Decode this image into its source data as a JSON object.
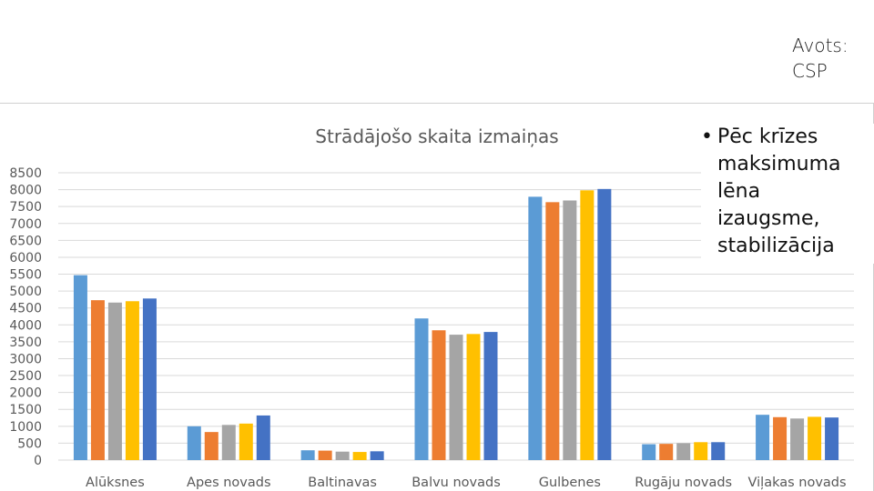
{
  "source": {
    "line1": "Avots:",
    "line2": "CSP"
  },
  "bullet": {
    "symbol": "•",
    "lines": [
      "Pēc krīzes",
      "maksimuma",
      "lēna",
      "izaugsme,",
      "stabilizācija"
    ]
  },
  "colors": {
    "series": [
      "#5B9BD5",
      "#ED7D31",
      "#A5A5A5",
      "#FFC000",
      "#4472C4"
    ],
    "grid": "#d9d9d9",
    "text": "#595959"
  },
  "chart_data": {
    "type": "bar",
    "title": "Strādājošo skaita izmaiņas",
    "xlabel": "",
    "ylabel": "",
    "ylim": [
      0,
      8500
    ],
    "yticks": [
      "0",
      "500",
      "1000",
      "1500",
      "2000",
      "2500",
      "3000",
      "3500",
      "4000",
      "4500",
      "5000",
      "5500",
      "6000",
      "6500",
      "7000",
      "7500",
      "8000",
      "8500"
    ],
    "grid": true,
    "categories": [
      "Alūksnes",
      "Apes novads",
      "Baltinavas",
      "Balvu novads",
      "Gulbenes",
      "Rugāju novads",
      "Viļakas novads"
    ],
    "series": [
      {
        "values": [
          5470,
          1000,
          290,
          4190,
          7790,
          470,
          1340
        ]
      },
      {
        "values": [
          4730,
          830,
          280,
          3840,
          7630,
          480,
          1270
        ]
      },
      {
        "values": [
          4660,
          1040,
          250,
          3710,
          7680,
          500,
          1230
        ]
      },
      {
        "values": [
          4700,
          1080,
          240,
          3730,
          7980,
          530,
          1280
        ]
      },
      {
        "values": [
          4780,
          1320,
          260,
          3790,
          8020,
          530,
          1260
        ]
      }
    ]
  }
}
